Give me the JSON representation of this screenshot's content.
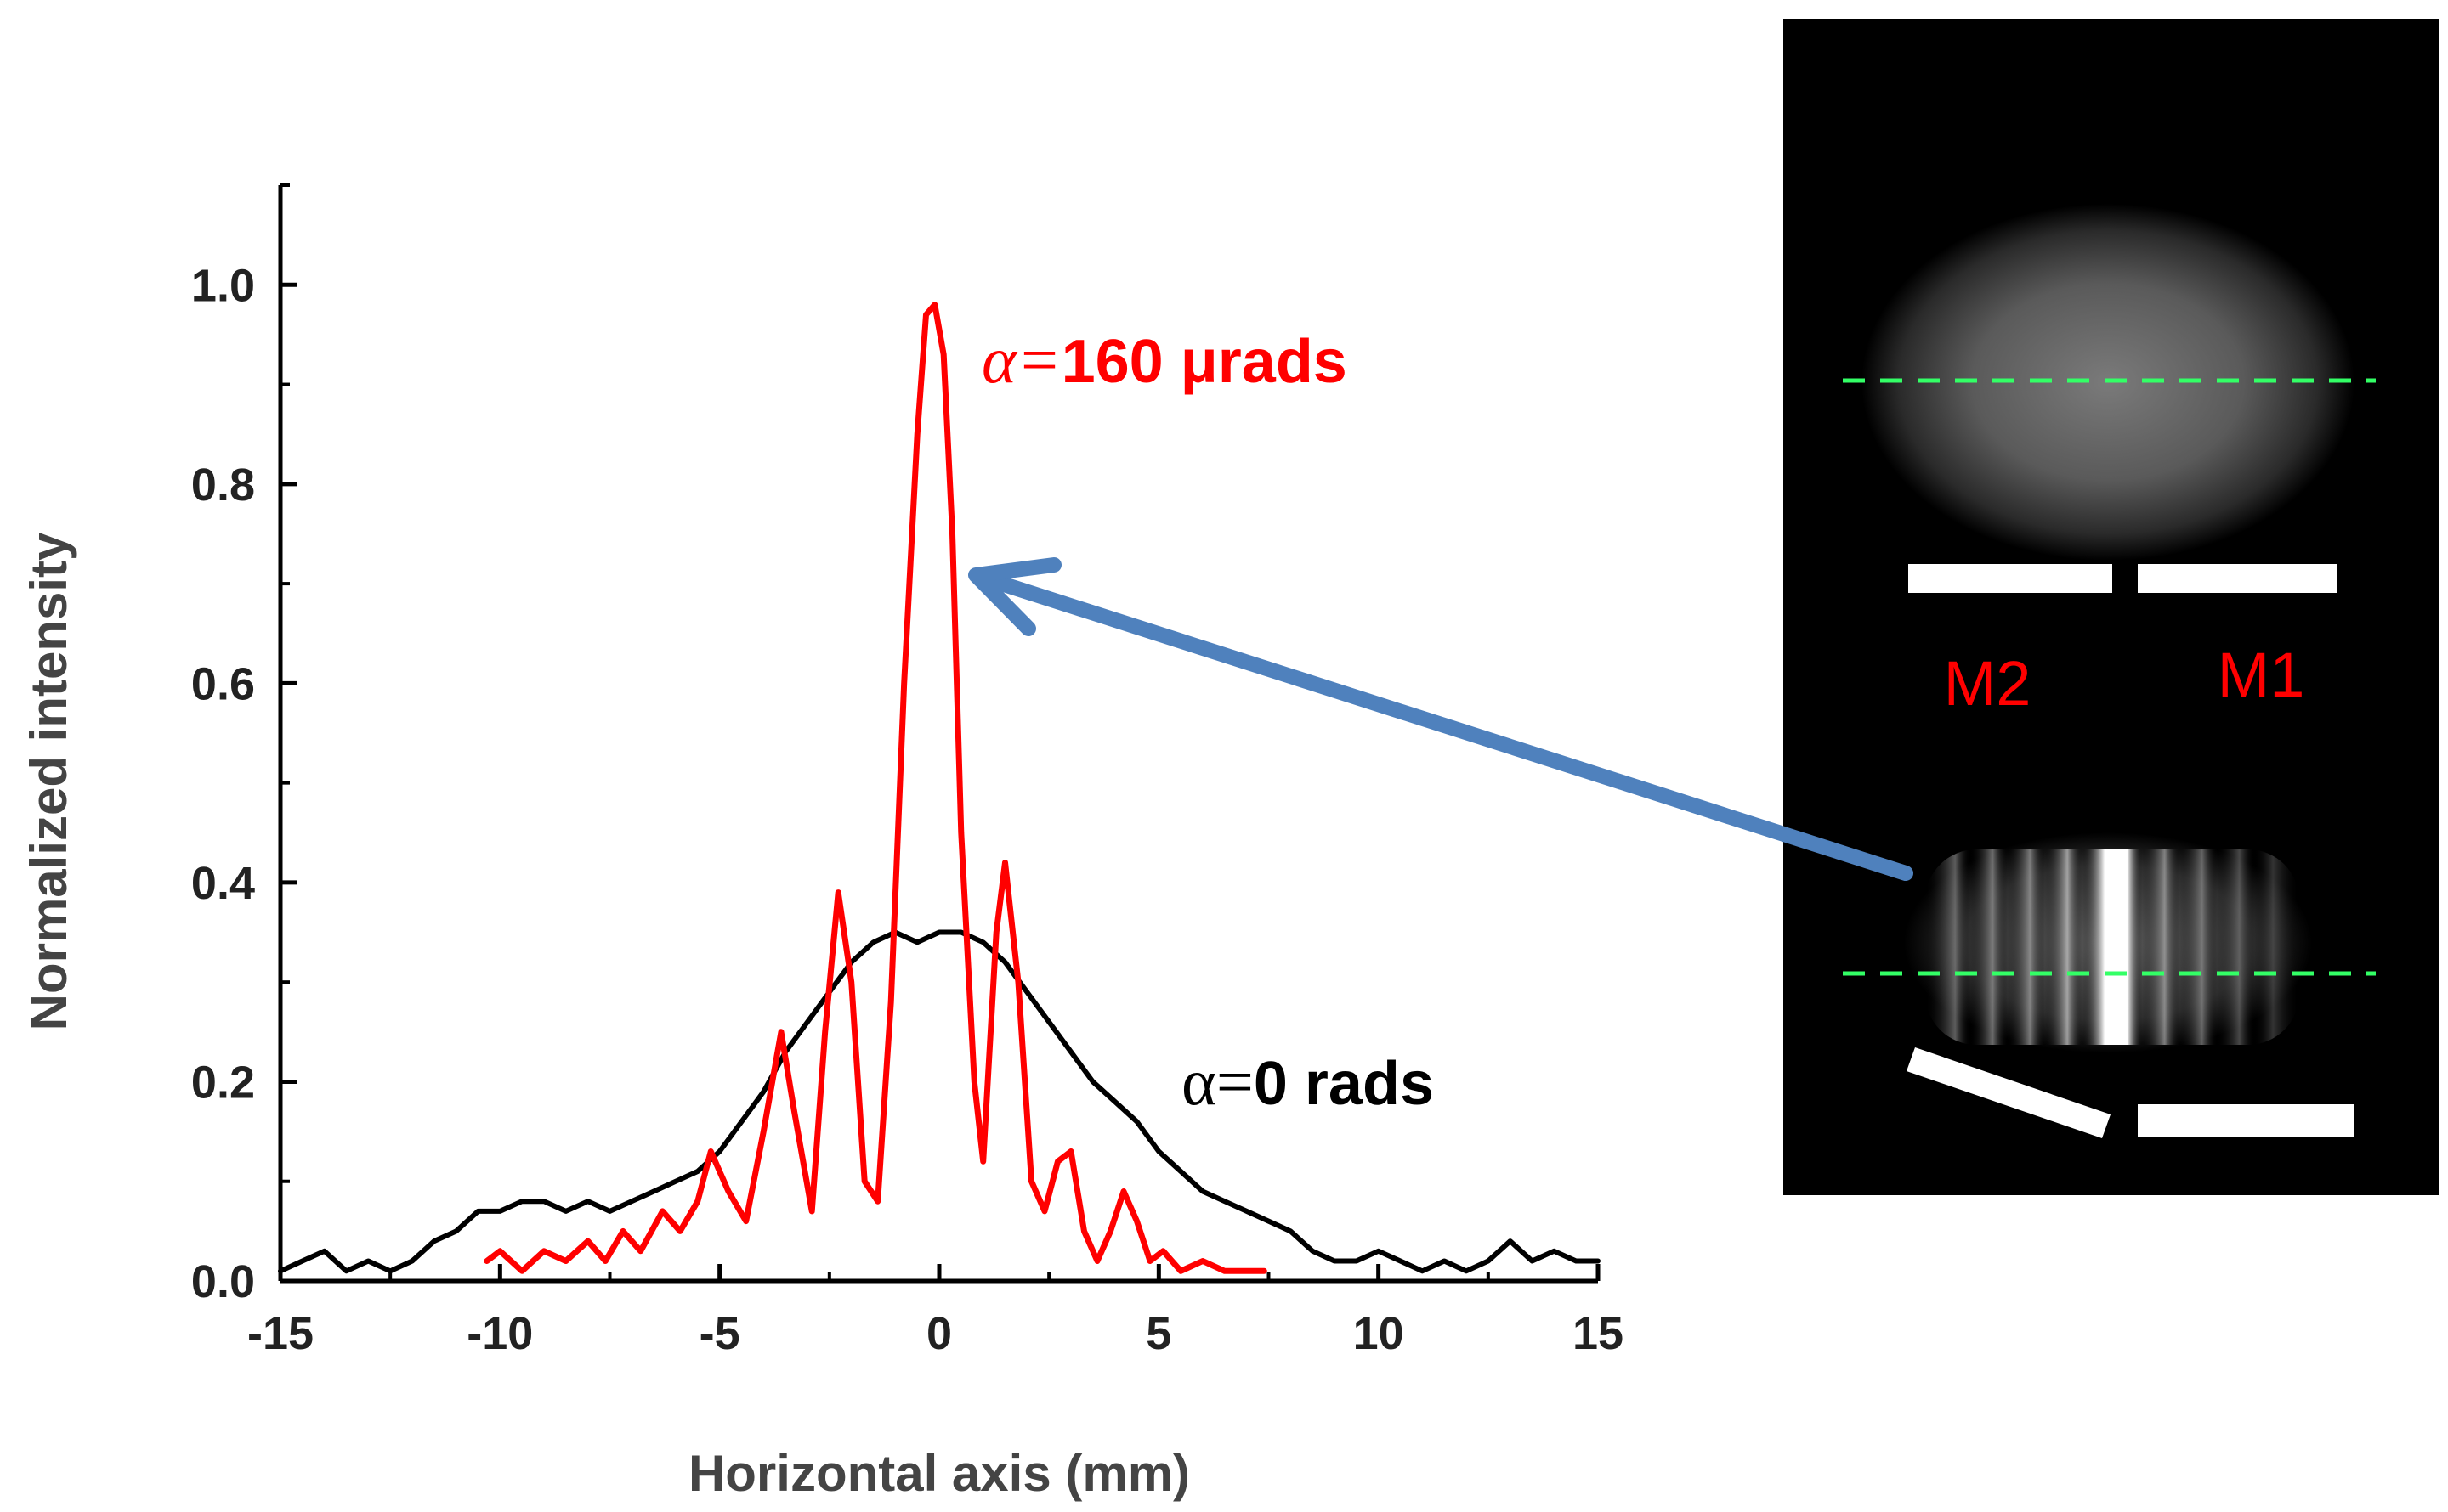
{
  "chart_data": {
    "type": "line",
    "xlabel": "Horizontal axis (mm)",
    "ylabel": "Normalized intensity",
    "xlim": [
      -15,
      15
    ],
    "ylim": [
      0,
      1.1
    ],
    "xticks": [
      -15,
      -10,
      -5,
      0,
      5,
      10,
      15
    ],
    "xtick_labels": [
      "-15",
      "-10",
      "-5",
      "0",
      "5",
      "10",
      "15"
    ],
    "yticks": [
      0.0,
      0.2,
      0.4,
      0.6,
      0.8,
      1.0
    ],
    "ytick_labels": [
      "0.0",
      "0.2",
      "0.4",
      "0.6",
      "0.8",
      "1.0"
    ],
    "grid": false,
    "series": [
      {
        "name": "α=0 rads",
        "color": "#000000",
        "x": [
          -15,
          -14.5,
          -14,
          -13.5,
          -13,
          -12.5,
          -12,
          -11.5,
          -11,
          -10.5,
          -10,
          -9.5,
          -9,
          -8.5,
          -8,
          -7.5,
          -7,
          -6.5,
          -6,
          -5.5,
          -5,
          -4.5,
          -4,
          -3.5,
          -3,
          -2.5,
          -2,
          -1.5,
          -1,
          -0.5,
          0,
          0.5,
          1,
          1.5,
          2,
          2.5,
          3,
          3.5,
          4,
          4.5,
          5,
          5.5,
          6,
          6.5,
          7,
          7.5,
          8,
          8.5,
          9,
          9.5,
          10,
          10.5,
          11,
          11.5,
          12,
          12.5,
          13,
          13.5,
          14,
          14.5,
          15
        ],
        "y": [
          0.01,
          0.02,
          0.03,
          0.01,
          0.02,
          0.01,
          0.02,
          0.04,
          0.05,
          0.07,
          0.07,
          0.08,
          0.08,
          0.07,
          0.08,
          0.07,
          0.08,
          0.09,
          0.1,
          0.11,
          0.13,
          0.16,
          0.19,
          0.23,
          0.26,
          0.29,
          0.32,
          0.34,
          0.35,
          0.34,
          0.35,
          0.35,
          0.34,
          0.32,
          0.29,
          0.26,
          0.23,
          0.2,
          0.18,
          0.16,
          0.13,
          0.11,
          0.09,
          0.08,
          0.07,
          0.06,
          0.05,
          0.03,
          0.02,
          0.02,
          0.03,
          0.02,
          0.01,
          0.02,
          0.01,
          0.02,
          0.04,
          0.02,
          0.03,
          0.02,
          0.02
        ]
      },
      {
        "name": "α=160 μrads",
        "color": "#ff0000",
        "x": [
          -10.3,
          -10,
          -9.5,
          -9,
          -8.5,
          -8,
          -7.6,
          -7.2,
          -6.8,
          -6.3,
          -5.9,
          -5.5,
          -5.2,
          -4.8,
          -4.4,
          -4.0,
          -3.6,
          -3.3,
          -2.9,
          -2.6,
          -2.3,
          -2.0,
          -1.7,
          -1.4,
          -1.1,
          -0.8,
          -0.5,
          -0.3,
          -0.1,
          0.1,
          0.3,
          0.5,
          0.8,
          1.0,
          1.3,
          1.5,
          1.8,
          2.1,
          2.4,
          2.7,
          3.0,
          3.3,
          3.6,
          3.9,
          4.2,
          4.5,
          4.8,
          5.1,
          5.5,
          6.0,
          6.5,
          7.0,
          7.4
        ],
        "y": [
          0.02,
          0.03,
          0.01,
          0.03,
          0.02,
          0.04,
          0.02,
          0.05,
          0.03,
          0.07,
          0.05,
          0.08,
          0.13,
          0.09,
          0.06,
          0.15,
          0.25,
          0.17,
          0.07,
          0.25,
          0.39,
          0.3,
          0.1,
          0.08,
          0.28,
          0.6,
          0.85,
          0.97,
          0.98,
          0.93,
          0.75,
          0.45,
          0.2,
          0.12,
          0.35,
          0.42,
          0.3,
          0.1,
          0.07,
          0.12,
          0.13,
          0.05,
          0.02,
          0.05,
          0.09,
          0.06,
          0.02,
          0.03,
          0.01,
          0.02,
          0.01,
          0.01,
          0.01
        ]
      }
    ],
    "annotations": {
      "red": {
        "symbol": "α=",
        "text": "160 μrads"
      },
      "black": {
        "symbol": "α=",
        "text": "0 rads"
      }
    }
  },
  "inset": {
    "mirror_labels": [
      "M2",
      "M1"
    ],
    "label_color": "#ff0000",
    "guide_color": "#33ff66",
    "arrow_color": "#4f81bd"
  }
}
